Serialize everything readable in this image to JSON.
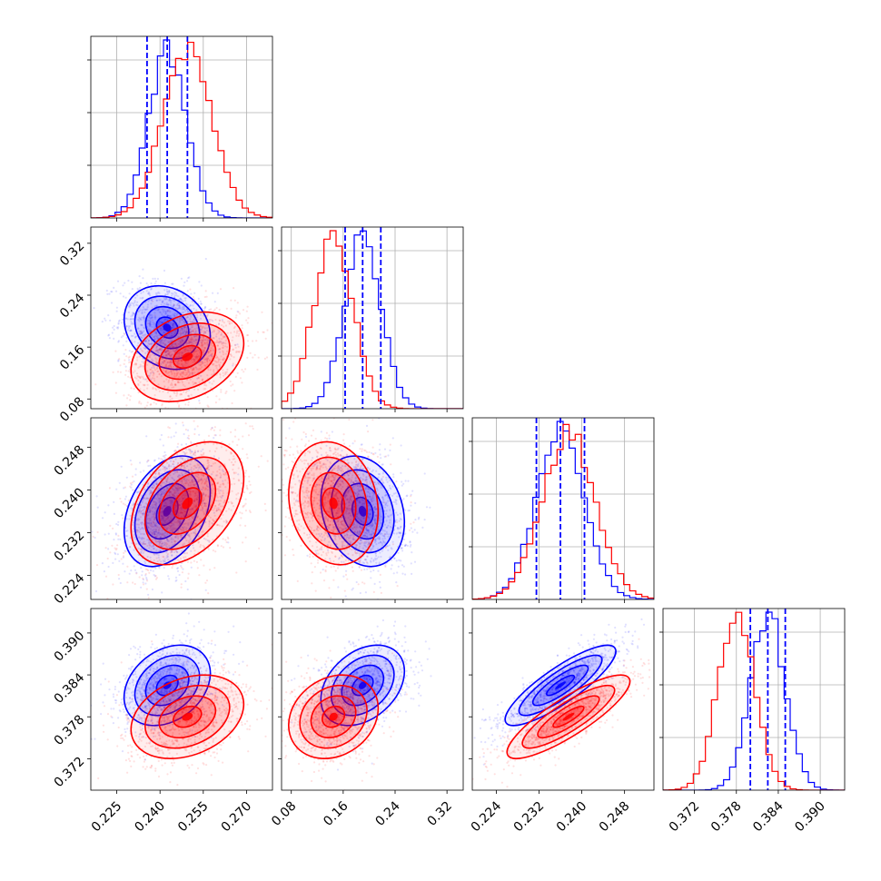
{
  "chart_data": {
    "type": "corner",
    "parameters": [
      "",
      "",
      "",
      ""
    ],
    "x_ticks": [
      [
        "0.225",
        "0.240",
        "0.255",
        "0.270"
      ],
      [
        "0.08",
        "0.16",
        "0.24",
        "0.32"
      ],
      [
        "0.224",
        "0.232",
        "0.240",
        "0.248"
      ],
      [
        "0.372",
        "0.378",
        "0.384",
        "0.390"
      ]
    ],
    "y_ticks": [
      [],
      [
        "0.08",
        "0.16",
        "0.24",
        "0.32"
      ],
      [
        "0.224",
        "0.232",
        "0.240",
        "0.248"
      ],
      [
        "0.372",
        "0.378",
        "0.384",
        "0.390"
      ]
    ],
    "ranges": [
      [
        0.216,
        0.279
      ],
      [
        0.065,
        0.345
      ],
      [
        0.2195,
        0.2535
      ],
      [
        0.3675,
        0.3935
      ]
    ],
    "grid": true,
    "series": [
      {
        "color": "#0000ff",
        "mean": [
          0.2425,
          0.19,
          0.236,
          0.3825
        ],
        "std": [
          0.0065,
          0.028,
          0.0045,
          0.0025
        ],
        "corr": {
          "0-1": -0.2,
          "0-2": 0.35,
          "0-3": 0.3,
          "1-2": -0.2,
          "1-3": 0.35,
          "2-3": 0.85
        }
      },
      {
        "color": "#ff0000",
        "mean": [
          0.2495,
          0.145,
          0.2375,
          0.378
        ],
        "std": [
          0.0085,
          0.03,
          0.005,
          0.0026
        ],
        "corr": {
          "0-1": 0.3,
          "0-2": 0.4,
          "0-3": 0.3,
          "1-2": -0.15,
          "1-3": 0.2,
          "2-3": 0.85
        }
      }
    ],
    "quantile_lines": {
      "color": "#0000ff",
      "values": [
        [
          0.2355,
          0.2425,
          0.2495
        ],
        [
          0.163,
          0.19,
          0.218
        ],
        [
          0.2315,
          0.236,
          0.2405
        ],
        [
          0.38,
          0.3825,
          0.385
        ]
      ]
    }
  }
}
